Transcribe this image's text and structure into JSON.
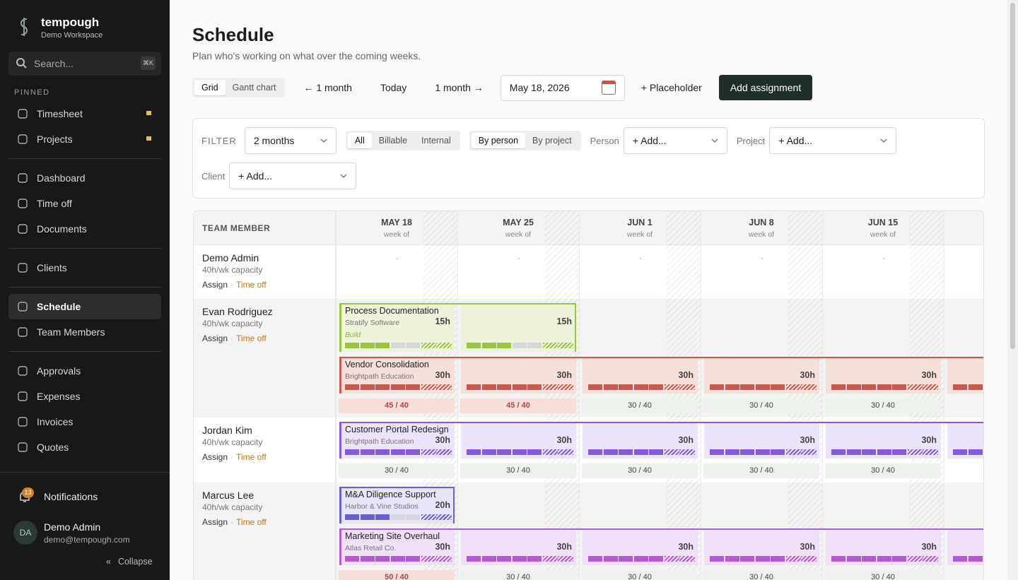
{
  "sidebar": {
    "brand": "tempough",
    "workspace": "Demo Workspace",
    "search": "Search...",
    "shortcut": "⌘K",
    "pinned_label": "PINNED",
    "pinned": [
      "Timesheet",
      "Projects"
    ],
    "nav_groups": [
      [
        "Dashboard",
        "Time off",
        "Documents"
      ],
      [
        "Clients"
      ],
      [
        "Schedule",
        "Team Members"
      ],
      [
        "Approvals",
        "Expenses",
        "Invoices",
        "Quotes"
      ]
    ],
    "active": "Schedule",
    "notifications": "Notifications",
    "notification_count": 13,
    "user": {
      "initials": "DA",
      "name": "Demo Admin",
      "email": "demo@tempough.com"
    },
    "collapse": "Collapse"
  },
  "header": {
    "title": "Schedule",
    "subtitle": "Plan who's working on what over the coming weeks."
  },
  "toolbar": {
    "views": [
      "Grid",
      "Gantt chart"
    ],
    "active_view": "Grid",
    "prev": "← 1 month",
    "today": "Today",
    "next": "1 month →",
    "date": "May 18, 2026",
    "placeholder": "+ Placeholder",
    "add": "Add assignment"
  },
  "filter": {
    "label": "FILTER",
    "range": "2 months",
    "types": [
      "All",
      "Billable",
      "Internal"
    ],
    "active_type": "All",
    "groupings": [
      "By person",
      "By project"
    ],
    "active_grouping": "By person",
    "fields": [
      {
        "label": "Person",
        "value": "+ Add..."
      },
      {
        "label": "Project",
        "value": "+ Add..."
      },
      {
        "label": "Client",
        "value": "+ Add..."
      }
    ]
  },
  "grid": {
    "member_header": "TEAM MEMBER",
    "weeks": [
      {
        "date": "MAY 18",
        "sub": "week of"
      },
      {
        "date": "MAY 25",
        "sub": "week of"
      },
      {
        "date": "JUN 1",
        "sub": "week of"
      },
      {
        "date": "JUN 8",
        "sub": "week of"
      },
      {
        "date": "JUN 15",
        "sub": "week of"
      },
      null
    ],
    "members": [
      {
        "name": "Demo Admin",
        "capacity": "40h/wk capacity",
        "assign": "Assign",
        "time_off": "Time off",
        "assignments": [],
        "totals": []
      },
      {
        "name": "Evan Rodriguez",
        "capacity": "40h/wk capacity",
        "assign": "Assign",
        "time_off": "Time off",
        "assignments": [
          {
            "title": "Process Documentation",
            "client": "Stratify Software",
            "tag": "Build",
            "color": "#9cc43f",
            "bg": "#eef3dc",
            "hours": [
              "15h",
              "15h"
            ],
            "continues": false
          },
          {
            "title": "Vendor Consolidation",
            "client": "Brightpath Education",
            "color": "#c85a4b",
            "bg": "#f6e0dc",
            "hours": [
              "30h",
              "30h",
              "30h",
              "30h",
              "30h"
            ],
            "continues": true
          }
        ],
        "totals": [
          "45 / 40",
          "45 / 40",
          "30 / 40",
          "30 / 40",
          "30 / 40"
        ]
      },
      {
        "name": "Jordan Kim",
        "capacity": "40h/wk capacity",
        "assign": "Assign",
        "time_off": "Time off",
        "assignments": [
          {
            "title": "Customer Portal Redesign",
            "client": "Brightpath Education",
            "color": "#8559de",
            "bg": "#ebe4fa",
            "hours": [
              "30h",
              "30h",
              "30h",
              "30h",
              "30h"
            ],
            "continues": true
          }
        ],
        "totals": [
          "30 / 40",
          "30 / 40",
          "30 / 40",
          "30 / 40",
          "30 / 40"
        ]
      },
      {
        "name": "Marcus Lee",
        "capacity": "40h/wk capacity",
        "assign": "Assign",
        "time_off": "Time off",
        "assignments": [
          {
            "title": "M&A Diligence Support",
            "client": "Harbor & Vine Studios",
            "color": "#6a5fd0",
            "bg": "#e7e5f8",
            "hours": [
              "20h"
            ],
            "continues": false
          },
          {
            "title": "Marketing Site Overhaul",
            "client": "Atlas Retail Co.",
            "color": "#b659d4",
            "bg": "#f1e1f7",
            "hours": [
              "30h",
              "30h",
              "30h",
              "30h",
              "30h"
            ],
            "continues": true
          }
        ],
        "totals": [
          "50 / 40",
          "30 / 40",
          "30 / 40",
          "30 / 40",
          "30 / 40"
        ]
      }
    ]
  }
}
